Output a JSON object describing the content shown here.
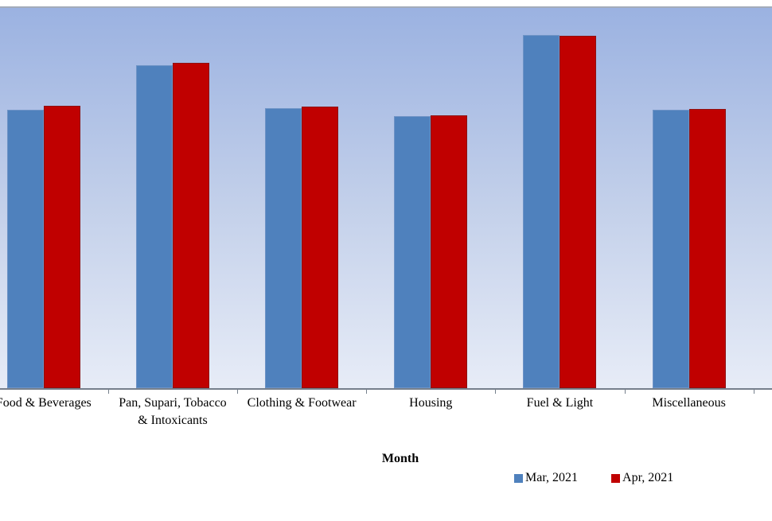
{
  "chart_data": {
    "type": "bar",
    "xlabel": "Month",
    "ylabel": "",
    "value_axis_visible": false,
    "value_unit": "percent_of_plot_height",
    "note": "The value axis is cropped outside the image; series values are bar heights measured as percent of the visible plot-area height.",
    "categories": [
      "Food & Beverages",
      "Pan, Supari, Tobacco & Intoxicants",
      "Clothing & Footwear",
      "Housing",
      "Fuel & Light",
      "Miscellaneous"
    ],
    "tick_label_lines": [
      [
        "Food & Beverages"
      ],
      [
        "Pan, Supari, Tobacco",
        "& Intoxicants"
      ],
      [
        "Clothing & Footwear"
      ],
      [
        "Housing"
      ],
      [
        "Fuel & Light"
      ],
      [
        "Miscellaneous"
      ]
    ],
    "series": [
      {
        "name": "Mar, 2021",
        "color": "#4F81BD",
        "border_color": "#6E93C6",
        "values": [
          73.2,
          84.9,
          73.6,
          71.5,
          92.9,
          73.2
        ]
      },
      {
        "name": "Apr, 2021",
        "color": "#C00000",
        "border_color": "#8E1212",
        "values": [
          74.3,
          85.6,
          74.1,
          71.7,
          92.7,
          73.5
        ]
      }
    ],
    "legend_position": "bottom-right",
    "grid": false,
    "plot_area_style": {
      "gradient_top": "#9BB2E1",
      "gradient_mid": "#C3D0EA",
      "gradient_bottom": "#E7ECF7",
      "top_border_color": "#A3ACBB",
      "axis_line_color": "#76808C"
    }
  }
}
